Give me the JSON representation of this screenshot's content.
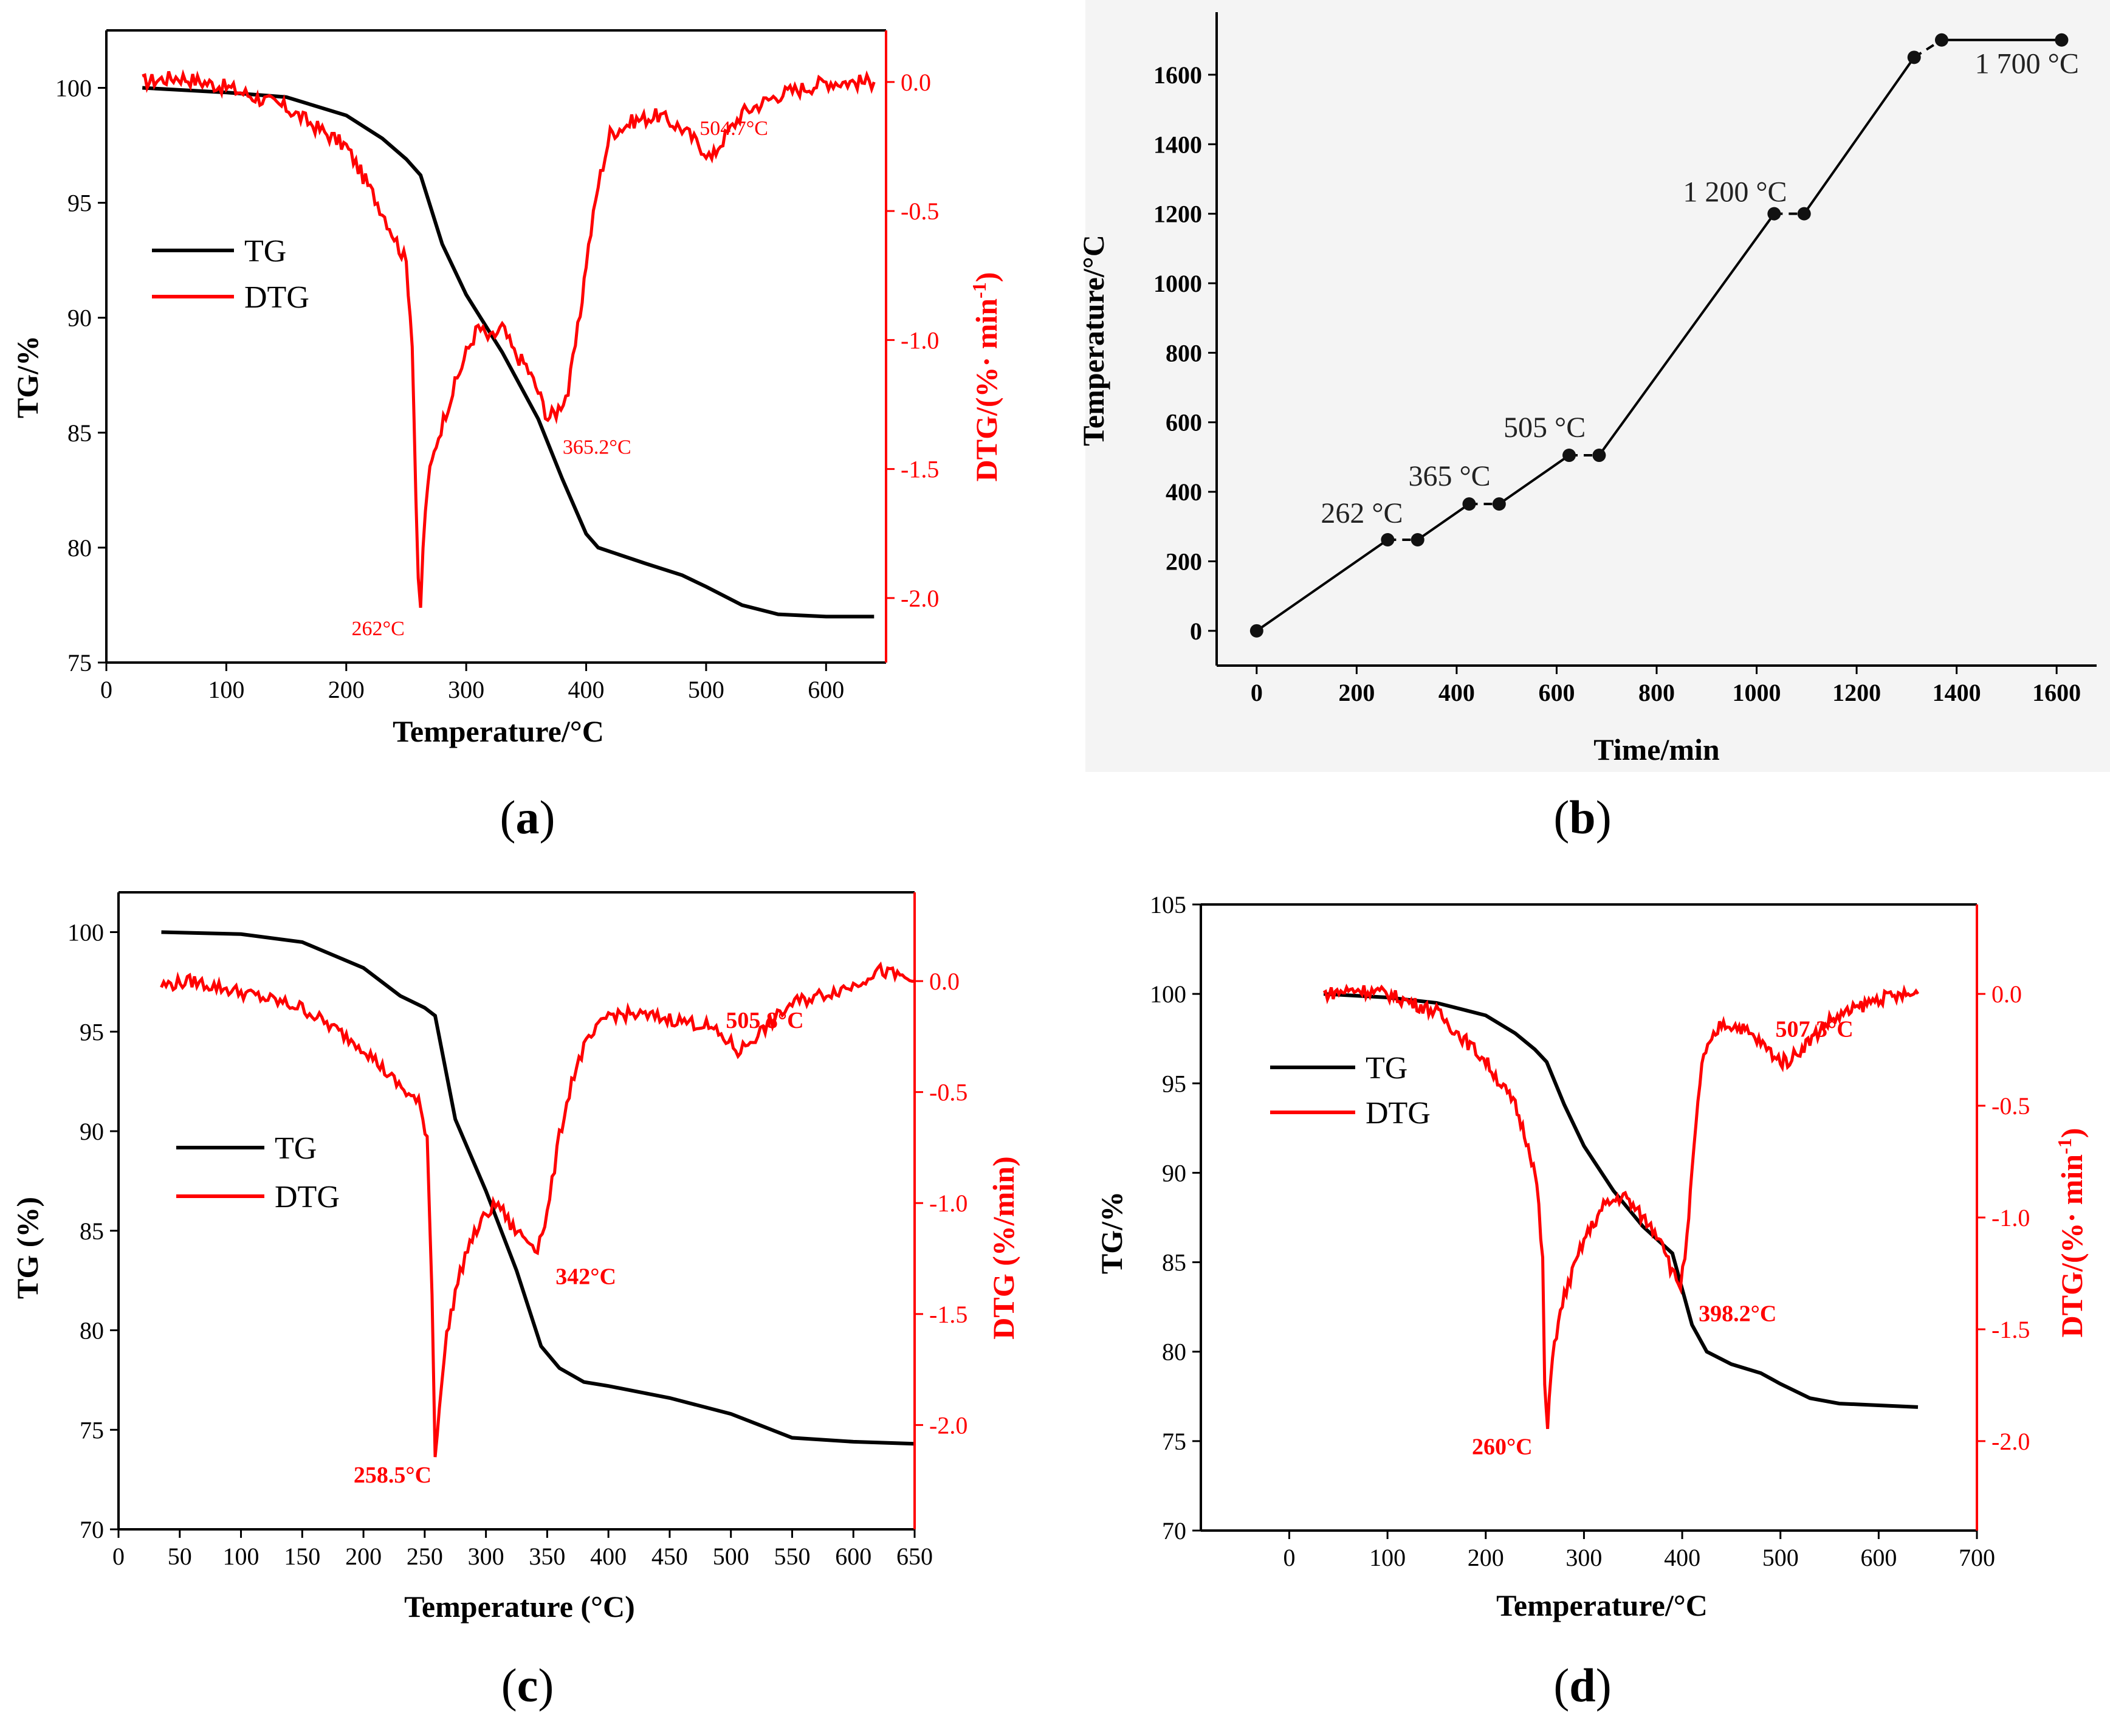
{
  "captions": [
    {
      "open": "(",
      "letter": "a",
      "close": ")"
    },
    {
      "open": "(",
      "letter": "b",
      "close": ")"
    },
    {
      "open": "(",
      "letter": "c",
      "close": ")"
    },
    {
      "open": "(",
      "letter": "d",
      "close": ")"
    }
  ],
  "colors": {
    "tg": "#000000",
    "dtg": "#ff0000",
    "temp": "#000000"
  },
  "chart_data": [
    {
      "id": "a",
      "type": "line",
      "xlabel": "Temperature/°C",
      "ylabel": "TG/%",
      "y2label": "DTG/(%· min",
      "y2label_sup": "-1",
      "y2label_close": ")",
      "xlim": [
        0,
        650
      ],
      "xticks": [
        0,
        100,
        200,
        300,
        400,
        500,
        600
      ],
      "ylim": [
        75,
        102.5
      ],
      "yticks": [
        75,
        80,
        85,
        90,
        95,
        100
      ],
      "y2lim": [
        -2.25,
        0.2
      ],
      "y2ticks": [
        -2.0,
        -1.5,
        -1.0,
        -0.5,
        0.0
      ],
      "y2tick_labels": [
        "-2.0",
        "-1.5",
        "-1.0",
        "-0.5",
        "0.0"
      ],
      "legend": [
        "TG",
        "DTG"
      ],
      "legend_position": "left-middle",
      "series": [
        {
          "name": "TG",
          "axis": "left",
          "x": [
            30,
            100,
            150,
            200,
            230,
            250,
            262,
            280,
            300,
            330,
            360,
            380,
            400,
            410,
            450,
            480,
            500,
            530,
            560,
            600,
            640
          ],
          "y": [
            100,
            99.8,
            99.6,
            98.8,
            97.8,
            96.9,
            96.2,
            93.2,
            91.0,
            88.5,
            85.6,
            83.0,
            80.6,
            80.0,
            79.3,
            78.8,
            78.3,
            77.5,
            77.1,
            77.0,
            77.0
          ]
        },
        {
          "name": "DTG",
          "axis": "right",
          "x": [
            30,
            60,
            100,
            150,
            200,
            230,
            240,
            250,
            255,
            258,
            260,
            262,
            264,
            268,
            275,
            285,
            300,
            310,
            320,
            330,
            340,
            350,
            360,
            368,
            375,
            385,
            395,
            400,
            410,
            420,
            440,
            460,
            480,
            500,
            504.7,
            510,
            530,
            560,
            600,
            640
          ],
          "y": [
            0.0,
            0.02,
            -0.02,
            -0.1,
            -0.25,
            -0.5,
            -0.6,
            -0.7,
            -1.0,
            -1.6,
            -1.95,
            -2.05,
            -1.8,
            -1.55,
            -1.4,
            -1.25,
            -1.05,
            -0.95,
            -1.0,
            -0.95,
            -1.05,
            -1.1,
            -1.2,
            -1.3,
            -1.28,
            -1.2,
            -0.9,
            -0.7,
            -0.4,
            -0.2,
            -0.15,
            -0.13,
            -0.18,
            -0.27,
            -0.3,
            -0.25,
            -0.12,
            -0.05,
            0.0,
            0.0
          ]
        }
      ],
      "annotations": [
        {
          "text": "262°C",
          "x": 262,
          "y": -2.05
        },
        {
          "text": "365.2°C",
          "x": 365.2,
          "y": -1.3
        },
        {
          "text": "504.7°C",
          "x": 504.7,
          "y": -0.3
        }
      ]
    },
    {
      "id": "b",
      "type": "line",
      "xlabel": "Time/min",
      "ylabel": "Temperature/°C",
      "xlim": [
        -80,
        1680
      ],
      "xticks": [
        0,
        200,
        400,
        600,
        800,
        1000,
        1200,
        1400,
        1600
      ],
      "ylim": [
        -100,
        1780
      ],
      "yticks": [
        0,
        200,
        400,
        600,
        800,
        1000,
        1200,
        1400,
        1600
      ],
      "series": [
        {
          "name": "",
          "axis": "left",
          "x": [
            0,
            262,
            322,
            425,
            485,
            625,
            685,
            1035,
            1095,
            1315,
            1370,
            1610
          ],
          "y": [
            0,
            262,
            262,
            365,
            365,
            505,
            505,
            1200,
            1200,
            1650,
            1700,
            1700
          ],
          "dashed_segments": [
            1,
            3,
            5,
            7,
            9
          ]
        }
      ],
      "annotations": [
        {
          "text": "262 °C",
          "x": 262,
          "y": 262
        },
        {
          "text": "365 °C",
          "x": 425,
          "y": 365
        },
        {
          "text": "505 °C",
          "x": 625,
          "y": 505
        },
        {
          "text": "1 200 °C",
          "x": 1035,
          "y": 1200
        },
        {
          "text": "1 700 °C",
          "x": 1400,
          "y": 1700
        }
      ]
    },
    {
      "id": "c",
      "type": "line",
      "xlabel": "Temperature (°C)",
      "ylabel": "TG (%)",
      "y2label": "DTG (%/min)",
      "xlim": [
        0,
        650
      ],
      "xticks": [
        0,
        50,
        100,
        150,
        200,
        250,
        300,
        350,
        400,
        450,
        500,
        550,
        600,
        650
      ],
      "ylim": [
        70,
        102
      ],
      "yticks": [
        70,
        75,
        80,
        85,
        90,
        95,
        100
      ],
      "y2lim": [
        -2.47,
        0.4
      ],
      "y2ticks": [
        -2.0,
        -1.5,
        -1.0,
        -0.5,
        0.0
      ],
      "y2tick_labels": [
        "-2.0",
        "-1.5",
        "-1.0",
        "-0.5",
        "0.0"
      ],
      "legend": [
        "TG",
        "DTG"
      ],
      "legend_position": "left-middle",
      "series": [
        {
          "name": "TG",
          "axis": "left",
          "x": [
            35,
            100,
            150,
            200,
            230,
            250,
            258.5,
            275,
            300,
            325,
            345,
            360,
            380,
            400,
            450,
            500,
            525,
            550,
            600,
            650
          ],
          "y": [
            100,
            99.9,
            99.5,
            98.2,
            96.8,
            96.2,
            95.8,
            90.6,
            87.0,
            83.0,
            79.2,
            78.1,
            77.4,
            77.2,
            76.6,
            75.8,
            75.2,
            74.6,
            74.4,
            74.3
          ]
        },
        {
          "name": "DTG",
          "axis": "right",
          "x": [
            35,
            60,
            100,
            150,
            200,
            225,
            245,
            252,
            256,
            258.5,
            262,
            268,
            275,
            285,
            300,
            310,
            320,
            330,
            342,
            350,
            360,
            370,
            380,
            400,
            420,
            450,
            480,
            500,
            505.8,
            520,
            550,
            600,
            620,
            650
          ],
          "y": [
            -0.02,
            0.0,
            -0.05,
            -0.12,
            -0.3,
            -0.45,
            -0.55,
            -0.7,
            -1.4,
            -2.15,
            -1.9,
            -1.6,
            -1.4,
            -1.2,
            -1.05,
            -1.0,
            -1.1,
            -1.15,
            -1.2,
            -1.05,
            -0.7,
            -0.45,
            -0.3,
            -0.15,
            -0.15,
            -0.17,
            -0.2,
            -0.28,
            -0.32,
            -0.25,
            -0.1,
            -0.02,
            0.05,
            0.0
          ]
        }
      ],
      "annotations": [
        {
          "text": "258.5°C",
          "x": 258.5,
          "y": -2.15
        },
        {
          "text": "342°C",
          "x": 342,
          "y": -1.2
        },
        {
          "text": "505.8°C",
          "x": 505.8,
          "y": -0.32
        }
      ]
    },
    {
      "id": "d",
      "type": "line",
      "xlabel": "Temperature/°C",
      "ylabel": "TG/%",
      "y2label": "DTG/(%· min",
      "y2label_sup": "-1",
      "y2label_close": ")",
      "xlim": [
        -90,
        700
      ],
      "xticks": [
        0,
        100,
        200,
        300,
        400,
        500,
        600,
        700
      ],
      "ylim": [
        70,
        105
      ],
      "yticks": [
        70,
        75,
        80,
        85,
        90,
        95,
        100,
        105
      ],
      "y2lim": [
        -2.4,
        0.4
      ],
      "y2ticks": [
        -2.0,
        -1.5,
        -1.0,
        -0.5,
        0.0
      ],
      "y2tick_labels": [
        "-2.0",
        "-1.5",
        "-1.0",
        "-0.5",
        "0.0"
      ],
      "legend": [
        "TG",
        "DTG"
      ],
      "legend_position": "left-middle",
      "series": [
        {
          "name": "TG",
          "axis": "left",
          "x": [
            35,
            100,
            150,
            200,
            230,
            250,
            262,
            280,
            300,
            330,
            360,
            390,
            410,
            425,
            450,
            480,
            500,
            530,
            560,
            600,
            640
          ],
          "y": [
            100,
            99.8,
            99.5,
            98.8,
            97.8,
            96.9,
            96.2,
            93.8,
            91.5,
            89.0,
            87.0,
            85.5,
            81.5,
            80.0,
            79.3,
            78.8,
            78.2,
            77.4,
            77.1,
            77.0,
            76.9
          ]
        },
        {
          "name": "DTG",
          "axis": "right",
          "x": [
            35,
            70,
            100,
            150,
            200,
            230,
            245,
            252,
            258,
            260,
            263,
            268,
            280,
            300,
            320,
            340,
            360,
            380,
            390,
            398.2,
            405,
            410,
            420,
            440,
            460,
            480,
            500,
            507.3,
            520,
            550,
            600,
            640
          ],
          "y": [
            0.0,
            0.02,
            0.0,
            -0.08,
            -0.3,
            -0.5,
            -0.7,
            -0.85,
            -1.2,
            -1.75,
            -1.95,
            -1.6,
            -1.35,
            -1.1,
            -0.95,
            -0.9,
            -1.0,
            -1.1,
            -1.25,
            -1.3,
            -1.1,
            -0.8,
            -0.3,
            -0.13,
            -0.15,
            -0.22,
            -0.3,
            -0.3,
            -0.25,
            -0.12,
            -0.02,
            0.0
          ]
        }
      ],
      "annotations": [
        {
          "text": "260°C",
          "x": 260,
          "y": -1.95
        },
        {
          "text": "398.2°C",
          "x": 398.2,
          "y": -1.3
        },
        {
          "text": "507.3°C",
          "x": 507.3,
          "y": -0.3
        }
      ]
    }
  ]
}
